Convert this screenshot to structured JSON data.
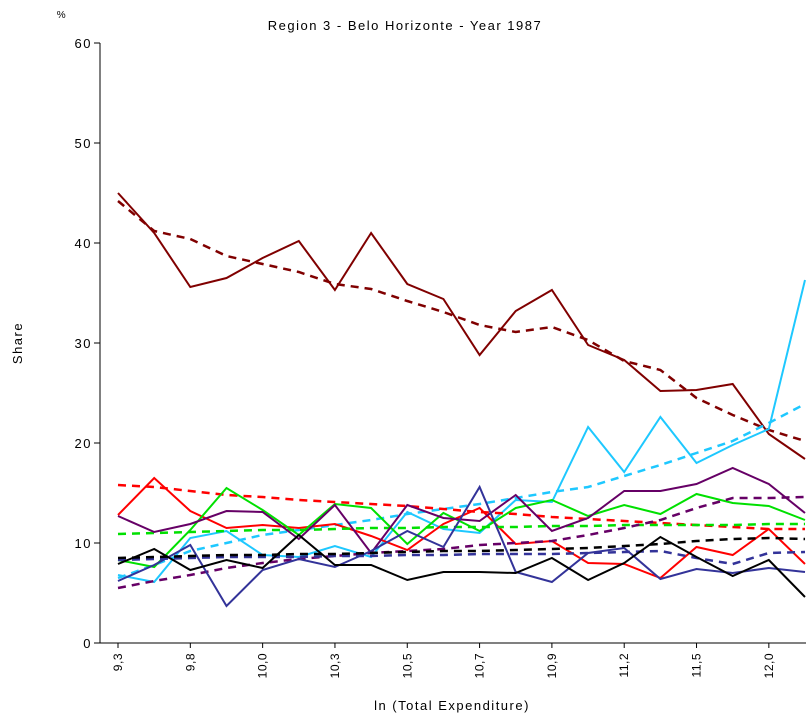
{
  "chart_data": {
    "type": "line",
    "title": "Region 3 - Belo Horizonte - Year 1987",
    "y_unit": "%",
    "y_label": "Share",
    "x_label": "ln (Total Expenditure)",
    "categories": [
      "9,3",
      null,
      "9,8",
      null,
      "10,0",
      null,
      "10,3",
      null,
      "10,5",
      null,
      "10,7",
      null,
      "10,9",
      null,
      "11,2",
      null,
      "11,5",
      null,
      "12,0",
      null
    ],
    "ylim": [
      0,
      60
    ],
    "yticks": [
      0,
      10,
      20,
      30,
      40,
      50,
      60
    ],
    "series": [
      {
        "color": "#800000",
        "dashed": false,
        "values": [
          45,
          41,
          35.6,
          36.5,
          38.5,
          40.2,
          35.3,
          41,
          35.9,
          34.4,
          28.8,
          33.2,
          35.3,
          29.8,
          28.3,
          25.2,
          25.3,
          25.9,
          20.9,
          18.4
        ]
      },
      {
        "color": "#800000",
        "dashed": true,
        "values": [
          44.2,
          41.2,
          40.4,
          38.7,
          37.9,
          37.1,
          35.9,
          35.4,
          34.2,
          33.1,
          31.8,
          31.1,
          31.6,
          30.3,
          28.2,
          27.3,
          24.5,
          22.8,
          21.3,
          20.2
        ]
      },
      {
        "color": "#1ec8ff",
        "dashed": false,
        "values": [
          6.8,
          6.1,
          10.5,
          11.2,
          8.8,
          8.6,
          9.7,
          8.6,
          13.1,
          11.4,
          11.0,
          14.3,
          14.1,
          21.6,
          17.1,
          22.6,
          18.0,
          19.8,
          21.4,
          36.3
        ]
      },
      {
        "color": "#1ec8ff",
        "dashed": true,
        "values": [
          6.5,
          7.8,
          9.2,
          10.0,
          10.8,
          11.3,
          11.8,
          12.3,
          12.9,
          13.4,
          13.9,
          14.5,
          15.1,
          15.6,
          16.7,
          17.8,
          19.0,
          20.2,
          22.0,
          23.9
        ]
      },
      {
        "color": "#ff0000",
        "dashed": false,
        "values": [
          12.8,
          16.5,
          13.2,
          11.5,
          11.8,
          11.5,
          11.9,
          10.7,
          9.3,
          11.9,
          13.5,
          9.9,
          10.2,
          8.0,
          7.9,
          6.5,
          9.6,
          8.8,
          11.4,
          7.9
        ]
      },
      {
        "color": "#ff0000",
        "dashed": true,
        "values": [
          15.8,
          15.6,
          15.2,
          14.8,
          14.6,
          14.3,
          14.1,
          13.9,
          13.7,
          13.4,
          13.1,
          12.9,
          12.6,
          12.4,
          12.2,
          12.0,
          11.8,
          11.6,
          11.4,
          11.4
        ]
      },
      {
        "color": "#00e000",
        "dashed": false,
        "values": [
          8.3,
          7.6,
          11.3,
          15.5,
          13.3,
          10.8,
          13.9,
          13.5,
          9.9,
          13.0,
          11.2,
          13.5,
          14.3,
          12.7,
          13.8,
          12.9,
          14.9,
          14.0,
          13.7,
          12.3
        ]
      },
      {
        "color": "#00e000",
        "dashed": true,
        "values": [
          10.9,
          11.0,
          11.1,
          11.2,
          11.3,
          11.3,
          11.4,
          11.5,
          11.5,
          11.6,
          11.6,
          11.6,
          11.7,
          11.7,
          11.8,
          11.8,
          11.8,
          11.8,
          11.9,
          11.9
        ]
      },
      {
        "color": "#660066",
        "dashed": false,
        "values": [
          12.7,
          11.1,
          11.9,
          13.2,
          13.1,
          10.4,
          13.8,
          9.0,
          13.8,
          12.5,
          12.2,
          14.8,
          11.2,
          12.5,
          15.2,
          15.2,
          15.9,
          17.5,
          15.9,
          13.0
        ]
      },
      {
        "color": "#660066",
        "dashed": true,
        "values": [
          5.5,
          6.2,
          6.8,
          7.5,
          8.0,
          8.4,
          8.7,
          9.0,
          9.2,
          9.4,
          9.8,
          10.0,
          10.2,
          10.8,
          11.5,
          12.3,
          13.5,
          14.5,
          14.5,
          14.6
        ]
      },
      {
        "color": "#333399",
        "dashed": false,
        "values": [
          6.2,
          7.8,
          9.8,
          3.7,
          7.3,
          8.4,
          7.6,
          9.2,
          11.2,
          9.6,
          15.6,
          7.1,
          6.1,
          9.0,
          9.5,
          6.4,
          7.4,
          7.0,
          7.5,
          7.1
        ]
      },
      {
        "color": "#333399",
        "dashed": true,
        "values": [
          8.3,
          8.4,
          8.5,
          8.6,
          8.6,
          8.6,
          8.7,
          8.7,
          8.8,
          8.8,
          8.9,
          8.9,
          8.9,
          9.0,
          9.1,
          9.2,
          8.5,
          7.9,
          9.0,
          9.1
        ]
      },
      {
        "color": "#000000",
        "dashed": false,
        "values": [
          7.9,
          9.4,
          7.3,
          8.3,
          7.5,
          10.8,
          7.8,
          7.8,
          6.3,
          7.1,
          7.1,
          7.0,
          8.5,
          6.3,
          8.0,
          10.6,
          8.6,
          6.7,
          8.3,
          4.6
        ]
      },
      {
        "color": "#000000",
        "dashed": true,
        "values": [
          8.5,
          8.6,
          8.7,
          8.8,
          8.8,
          8.9,
          8.9,
          9.0,
          9.1,
          9.2,
          9.2,
          9.3,
          9.4,
          9.5,
          9.7,
          9.9,
          10.2,
          10.4,
          10.5,
          10.4
        ]
      }
    ]
  }
}
